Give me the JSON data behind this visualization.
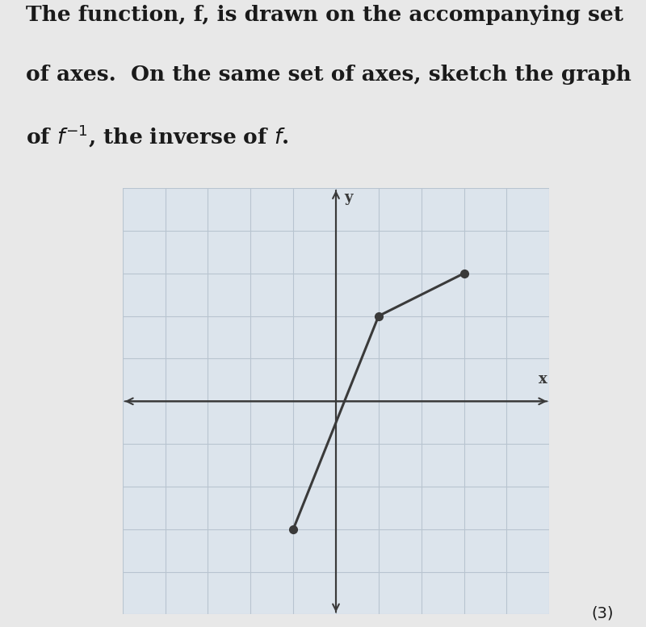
{
  "f_points": [
    [
      -1,
      -3
    ],
    [
      1,
      2
    ],
    [
      3,
      3
    ]
  ],
  "grid_range": [
    -5,
    5
  ],
  "axis_color": "#3a3a3a",
  "line_color": "#3a3a3a",
  "dot_color": "#3a3a3a",
  "grid_color_major": "#b8c4d0",
  "grid_color_minor": "#ccd4dc",
  "background_color": "#e8e8e8",
  "plot_bg_color": "#dce4ec",
  "text_color": "#1a1a1a",
  "title_fontsize": 19,
  "note_text": "(3)",
  "xlabel": "x",
  "ylabel": "y",
  "title_line1": "The function, f, is drawn on the accompanying set",
  "title_line2": "of axes.  On the same set of axes, sketch the graph",
  "title_line3_pre": "of ",
  "title_line3_post": ", the inverse of f."
}
